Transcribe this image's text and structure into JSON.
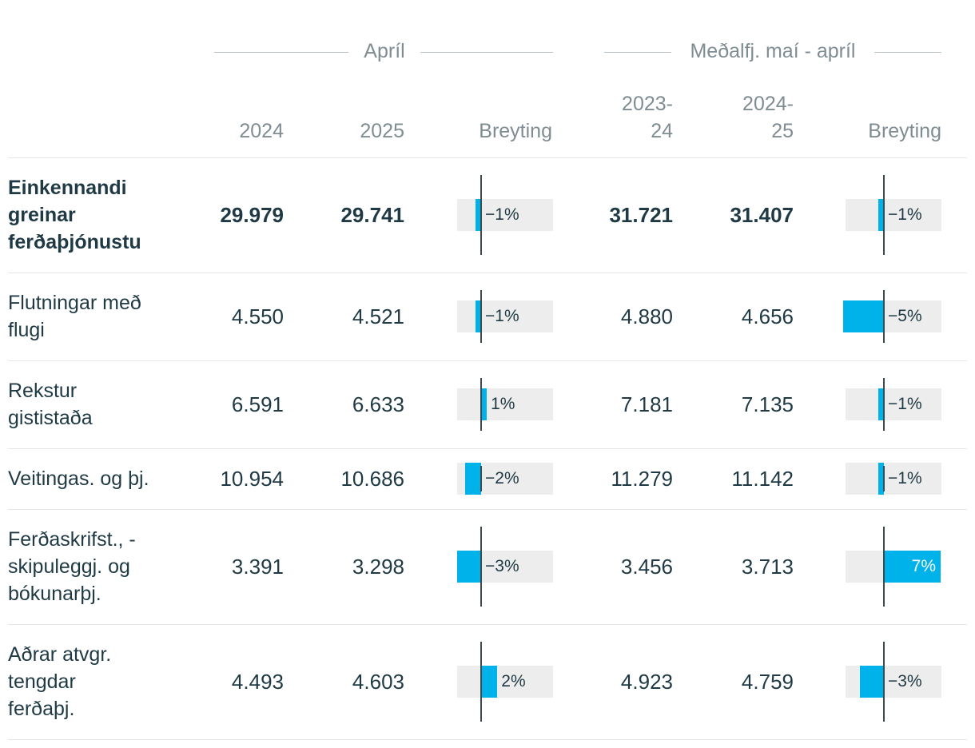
{
  "headers": {
    "group1": "Apríl",
    "group2": "Meðalfj. maí - apríl",
    "col_2024": "2024",
    "col_2025": "2025",
    "col_change1": "Breyting",
    "col_2023_24_a": "2023-",
    "col_2023_24_b": "24",
    "col_2024_25_a": "2024-",
    "col_2024_25_b": "25",
    "col_change2": "Breyting"
  },
  "chart_data": {
    "type": "table",
    "change_scale_max_pct": 7,
    "rows": [
      {
        "label": [
          "Einkennandi",
          "greinar",
          "ferðaþjónustu"
        ],
        "bold": true,
        "apr_2024": "29.979",
        "apr_2025": "29.741",
        "chg1": -1,
        "chg1_label": "−1%",
        "avg_2023_24": "31.721",
        "avg_2024_25": "31.407",
        "chg2": -1,
        "chg2_label": "−1%"
      },
      {
        "label": [
          "Flutningar með",
          "flugi"
        ],
        "bold": false,
        "apr_2024": "4.550",
        "apr_2025": "4.521",
        "chg1": -1,
        "chg1_label": "−1%",
        "avg_2023_24": "4.880",
        "avg_2024_25": "4.656",
        "chg2": -5,
        "chg2_label": "−5%"
      },
      {
        "label": [
          "Rekstur",
          "gististaða"
        ],
        "bold": false,
        "apr_2024": "6.591",
        "apr_2025": "6.633",
        "chg1": 1,
        "chg1_label": "1%",
        "avg_2023_24": "7.181",
        "avg_2024_25": "7.135",
        "chg2": -1,
        "chg2_label": "−1%"
      },
      {
        "label": [
          "Veitingas. og þj."
        ],
        "bold": false,
        "apr_2024": "10.954",
        "apr_2025": "10.686",
        "chg1": -2,
        "chg1_label": "−2%",
        "avg_2023_24": "11.279",
        "avg_2024_25": "11.142",
        "chg2": -1,
        "chg2_label": "−1%"
      },
      {
        "label": [
          "Ferðaskrifst., -",
          "skipuleggj. og",
          "bókunarþj."
        ],
        "bold": false,
        "apr_2024": "3.391",
        "apr_2025": "3.298",
        "chg1": -3,
        "chg1_label": "−3%",
        "avg_2023_24": "3.456",
        "avg_2024_25": "3.713",
        "chg2": 7,
        "chg2_label": "7%"
      },
      {
        "label": [
          "Aðrar atvgr.",
          "tengdar",
          "ferðaþj."
        ],
        "bold": false,
        "apr_2024": "4.493",
        "apr_2025": "4.603",
        "chg1": 2,
        "chg1_label": "2%",
        "avg_2023_24": "4.923",
        "avg_2024_25": "4.759",
        "chg2": -3,
        "chg2_label": "−3%"
      }
    ]
  }
}
